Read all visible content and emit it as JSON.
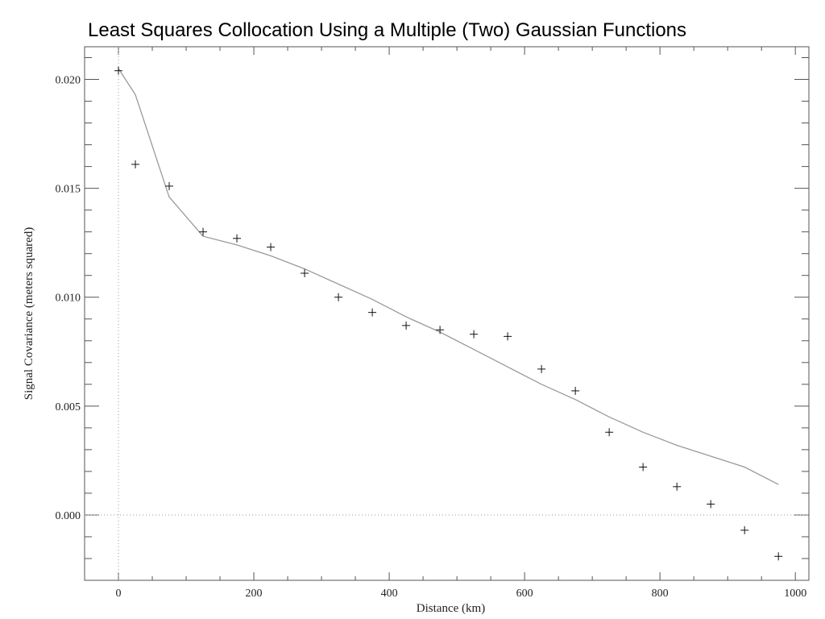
{
  "title": "Least Squares Collocation Using a Multiple (Two) Gaussian Functions",
  "colors": {
    "axis": "#555555",
    "fit_line": "#9a9a9a",
    "markers": "#111111",
    "reference_lines": "#999999"
  },
  "chart_data": {
    "type": "scatter",
    "title": "Least Squares Collocation Using a Multiple (Two) Gaussian Functions",
    "xlabel": "Distance (km)",
    "ylabel": "Signal Covariance (meters squared)",
    "xlim": [
      -50,
      1020
    ],
    "ylim": [
      -0.003,
      0.0215
    ],
    "xticks": [
      0,
      200,
      400,
      600,
      800,
      1000
    ],
    "xtick_labels": [
      "0",
      "200",
      "400",
      "600",
      "800",
      "1000"
    ],
    "yticks": [
      0.0,
      0.005,
      0.01,
      0.015,
      0.02
    ],
    "ytick_labels": [
      "0.000",
      "0.005",
      "0.010",
      "0.015",
      "0.020"
    ],
    "grid": false,
    "reference_lines": {
      "x": 0,
      "y": 0
    },
    "series": [
      {
        "kind": "markers",
        "marker": "plus",
        "x": [
          0,
          25,
          75,
          125,
          175,
          225,
          275,
          325,
          375,
          425,
          475,
          525,
          575,
          625,
          675,
          725,
          775,
          825,
          875,
          925,
          975
        ],
        "y": [
          0.0204,
          0.0161,
          0.0151,
          0.013,
          0.0127,
          0.0123,
          0.0111,
          0.01,
          0.0093,
          0.0087,
          0.0085,
          0.0083,
          0.0082,
          0.0067,
          0.0057,
          0.0038,
          0.0022,
          0.0013,
          0.0005,
          -0.0007,
          -0.0019
        ]
      },
      {
        "kind": "line",
        "x": [
          0,
          25,
          75,
          125,
          175,
          225,
          275,
          325,
          375,
          425,
          475,
          525,
          575,
          625,
          675,
          725,
          775,
          825,
          875,
          925,
          975
        ],
        "y": [
          0.0205,
          0.0193,
          0.0146,
          0.0128,
          0.0124,
          0.0119,
          0.0113,
          0.0106,
          0.0099,
          0.0091,
          0.0084,
          0.0076,
          0.0068,
          0.006,
          0.0053,
          0.0045,
          0.0038,
          0.0032,
          0.0027,
          0.0022,
          0.0014
        ]
      }
    ]
  }
}
